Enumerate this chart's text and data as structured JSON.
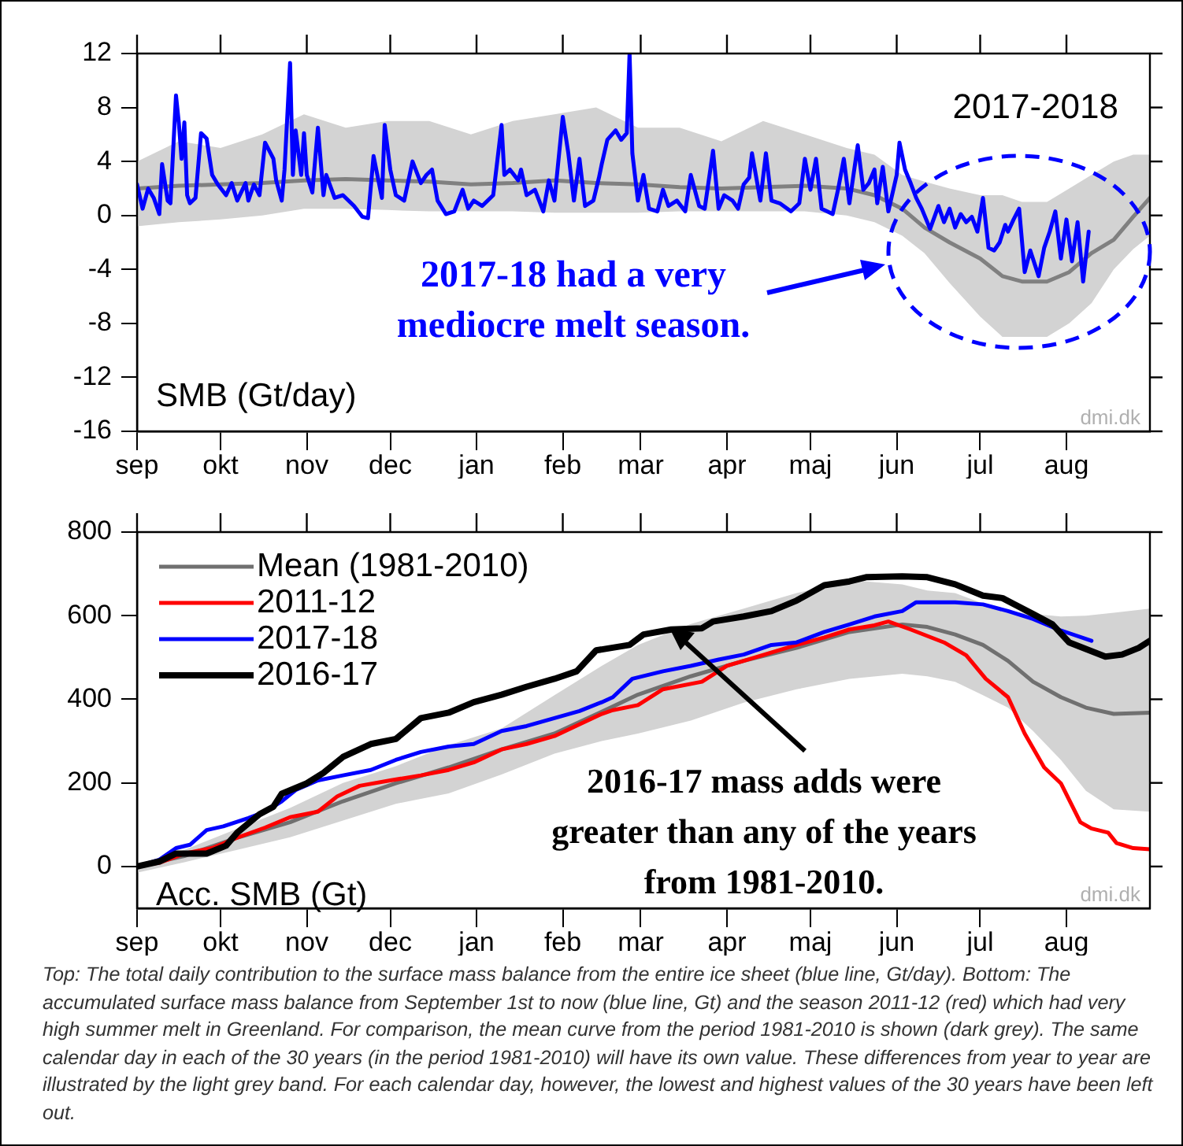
{
  "chart_data": [
    {
      "type": "line",
      "annotations": [
        "2017-2018",
        "SMB (Gt/day)",
        "2017-18 had a very mediocre melt season.",
        "dmi.dk"
      ],
      "xlim": [
        "2017-09-01",
        "2018-08-31"
      ],
      "xticks": [
        {
          "value": "2017-09-01",
          "label": "sep"
        },
        {
          "value": "2017-10-01",
          "label": "okt"
        },
        {
          "value": "2017-11-01",
          "label": "nov"
        },
        {
          "value": "2017-12-01",
          "label": "dec"
        },
        {
          "value": "2018-01-01",
          "label": "jan"
        },
        {
          "value": "2018-02-01",
          "label": "feb"
        },
        {
          "value": "2018-03-01",
          "label": "mar"
        },
        {
          "value": "2018-04-01",
          "label": "apr"
        },
        {
          "value": "2018-05-01",
          "label": "maj"
        },
        {
          "value": "2018-06-01",
          "label": "jun"
        },
        {
          "value": "2018-07-01",
          "label": "jul"
        },
        {
          "value": "2018-08-01",
          "label": "aug"
        }
      ],
      "ylim": [
        -16,
        12
      ],
      "yticks": [
        -16,
        -12,
        -8,
        -4,
        0,
        4,
        8,
        12
      ],
      "grid": false,
      "legend": false,
      "marker": "none",
      "line_style": "solid",
      "series": [
        {
          "color": "#808080",
          "x": [
            "2017-09-01",
            "2017-09-16",
            "2017-10-01",
            "2017-10-16",
            "2017-10-31",
            "2017-11-15",
            "2017-11-30",
            "2017-12-15",
            "2017-12-30",
            "2018-01-14",
            "2018-01-29",
            "2018-02-13",
            "2018-02-28",
            "2018-03-15",
            "2018-03-30",
            "2018-04-14",
            "2018-04-29",
            "2018-05-14",
            "2018-05-24",
            "2018-06-03",
            "2018-06-11",
            "2018-06-20",
            "2018-07-01",
            "2018-07-09",
            "2018-07-16",
            "2018-07-25",
            "2018-08-02",
            "2018-08-10",
            "2018-08-18",
            "2018-08-25",
            "2018-08-31"
          ],
          "values": [
            2.0,
            2.2,
            2.3,
            2.4,
            2.6,
            2.7,
            2.6,
            2.5,
            2.3,
            2.4,
            2.6,
            2.4,
            2.3,
            2.1,
            2.0,
            2.1,
            2.2,
            2.0,
            1.5,
            0.5,
            -0.9,
            -2,
            -3.2,
            -4.5,
            -4.9,
            -4.9,
            -4.2,
            -2.8,
            -1.8,
            -0.1,
            1.3
          ],
          "lower": [
            -0.8,
            -0.5,
            -0.3,
            0,
            0.5,
            0.5,
            0.4,
            0.3,
            0.3,
            0.3,
            0.2,
            0.2,
            0.2,
            0.3,
            0.3,
            0.3,
            0.3,
            0,
            -0.5,
            -1.5,
            -2.8,
            -5,
            -7.5,
            -9,
            -9,
            -9,
            -8,
            -6.5,
            -4,
            -2.5,
            -1.5
          ],
          "upper": [
            4,
            5.5,
            5,
            6,
            7.5,
            6.5,
            7,
            7,
            6,
            7,
            7.5,
            8,
            6.5,
            6.5,
            5.5,
            7,
            6,
            5,
            4.5,
            3,
            2.5,
            2,
            1.5,
            1.5,
            1,
            1,
            2,
            3,
            4,
            4.5,
            4.5
          ]
        },
        {
          "color": "#0000ff",
          "x": [
            "2017-09-01",
            "2017-09-03",
            "2017-09-05",
            "2017-09-07",
            "2017-09-09",
            "2017-09-10",
            "2017-09-12",
            "2017-09-13",
            "2017-09-15",
            "2017-09-16",
            "2017-09-17",
            "2017-09-18",
            "2017-09-19",
            "2017-09-20",
            "2017-09-22",
            "2017-09-24",
            "2017-09-26",
            "2017-09-28",
            "2017-09-30",
            "2017-10-03",
            "2017-10-05",
            "2017-10-07",
            "2017-10-10",
            "2017-10-11",
            "2017-10-13",
            "2017-10-15",
            "2017-10-17",
            "2017-10-20",
            "2017-10-21",
            "2017-10-23",
            "2017-10-24",
            "2017-10-26",
            "2017-10-27",
            "2017-10-28",
            "2017-10-30",
            "2017-10-31",
            "2017-11-01",
            "2017-11-03",
            "2017-11-05",
            "2017-11-07",
            "2017-11-08",
            "2017-11-11",
            "2017-11-14",
            "2017-11-18",
            "2017-11-21",
            "2017-11-23",
            "2017-11-25",
            "2017-11-28",
            "2017-11-29",
            "2017-12-01",
            "2017-12-03",
            "2017-12-06",
            "2017-12-09",
            "2017-12-12",
            "2017-12-14",
            "2017-12-16",
            "2017-12-18",
            "2017-12-21",
            "2017-12-24",
            "2017-12-27",
            "2017-12-29",
            "2017-12-31",
            "2018-01-03",
            "2018-01-07",
            "2018-01-10",
            "2018-01-11",
            "2018-01-13",
            "2018-01-16",
            "2018-01-17",
            "2018-01-19",
            "2018-01-22",
            "2018-01-25",
            "2018-01-27",
            "2018-01-29",
            "2018-02-01",
            "2018-02-03",
            "2018-02-05",
            "2018-02-07",
            "2018-02-09",
            "2018-02-12",
            "2018-02-14",
            "2018-02-15",
            "2018-02-17",
            "2018-02-20",
            "2018-02-22",
            "2018-02-24",
            "2018-02-25",
            "2018-02-26",
            "2018-02-28",
            "2018-03-02",
            "2018-03-04",
            "2018-03-07",
            "2018-03-09",
            "2018-03-11",
            "2018-03-14",
            "2018-03-17",
            "2018-03-19",
            "2018-03-22",
            "2018-03-24",
            "2018-03-27",
            "2018-03-29",
            "2018-03-31",
            "2018-04-03",
            "2018-04-05",
            "2018-04-07",
            "2018-04-09",
            "2018-04-10",
            "2018-04-13",
            "2018-04-15",
            "2018-04-17",
            "2018-04-20",
            "2018-04-24",
            "2018-04-27",
            "2018-04-29",
            "2018-05-01",
            "2018-05-03",
            "2018-05-05",
            "2018-05-07",
            "2018-05-09",
            "2018-05-11",
            "2018-05-13",
            "2018-05-15",
            "2018-05-18",
            "2018-05-20",
            "2018-05-22",
            "2018-05-24",
            "2018-05-25",
            "2018-05-27",
            "2018-05-29",
            "2018-06-01",
            "2018-06-02",
            "2018-06-04",
            "2018-06-06",
            "2018-06-08",
            "2018-06-10",
            "2018-06-13",
            "2018-06-16",
            "2018-06-18",
            "2018-06-20",
            "2018-06-22",
            "2018-06-24",
            "2018-06-26",
            "2018-06-28",
            "2018-06-30",
            "2018-07-02",
            "2018-07-04",
            "2018-07-06",
            "2018-07-08",
            "2018-07-10",
            "2018-07-11",
            "2018-07-13",
            "2018-07-15",
            "2018-07-17",
            "2018-07-19",
            "2018-07-22",
            "2018-07-24",
            "2018-07-26",
            "2018-07-28",
            "2018-07-30",
            "2018-08-01",
            "2018-08-03",
            "2018-08-05",
            "2018-08-07",
            "2018-08-09"
          ],
          "values": [
            2.3,
            0.5,
            2,
            1.3,
            0.1,
            3.8,
            1.1,
            0.9,
            8.9,
            6.9,
            4.2,
            6.9,
            1.5,
            0.9,
            1.3,
            6.1,
            5.7,
            3,
            2.3,
            1.5,
            2.4,
            1.1,
            2.4,
            1.1,
            2.3,
            1.5,
            5.4,
            4.2,
            2.6,
            1.1,
            3.4,
            11.3,
            3,
            6.3,
            3,
            6.1,
            3,
            1.7,
            6.5,
            1.5,
            3,
            1.3,
            1.5,
            0.7,
            -0.1,
            -0.2,
            4.4,
            1.3,
            6.7,
            3.4,
            1.5,
            1.1,
            4,
            2.4,
            3,
            3.4,
            1.1,
            0.1,
            0.3,
            1.9,
            0.5,
            1.1,
            0.7,
            1.5,
            6.7,
            3,
            3.4,
            2.6,
            3.4,
            1.5,
            1.9,
            0.3,
            2.6,
            1.1,
            7.3,
            4.6,
            1.1,
            4.2,
            0.7,
            1.1,
            2.8,
            3.8,
            5.6,
            6.3,
            5.6,
            6.1,
            12,
            4.6,
            1.1,
            3,
            0.5,
            0.3,
            1.9,
            0.7,
            1.1,
            0.3,
            3,
            0.7,
            0.5,
            4.8,
            0.5,
            1.5,
            1.1,
            0.5,
            2.3,
            2.8,
            4.6,
            1.1,
            4.6,
            1.1,
            0.9,
            0.3,
            0.9,
            4.2,
            1.9,
            4.2,
            0.5,
            0.3,
            0.1,
            2,
            4.2,
            0.9,
            5.2,
            1.9,
            2.4,
            3.4,
            0.9,
            3.6,
            0.3,
            3,
            5.4,
            3.4,
            2.4,
            1.3,
            0.5,
            -1,
            0.7,
            -0.5,
            0.5,
            -0.9,
            0.1,
            -0.5,
            -0.1,
            -1.2,
            1.3,
            -2.4,
            -2.6,
            -2,
            -0.7,
            -1.2,
            -0.3,
            0.5,
            -4.2,
            -2.6,
            -4.5,
            -2.4,
            -1.2,
            0.3,
            -3.2,
            -0.3,
            -3.4,
            -0.5,
            -4.9,
            -1.2
          ]
        }
      ]
    },
    {
      "type": "line",
      "annotations": [
        "Acc. SMB (Gt)",
        "2016-17 mass adds were greater than any of the years from 1981-2010.",
        "dmi.dk",
        "Top: The total daily contribution to the surface mass balance from the entire ice sheet (blue line, Gt/day). Bottom: The accumulated surface mass balance from September 1st to now (blue line, Gt) and the season 2011-12 (red) which had very high summer melt in Greenland. For comparison, the mean curve from the period 1981-2010 is shown (dark grey). The same calendar day in each of the 30 years (in the period 1981-2010) will have its own value. These differences from year to year are illustrated by the light grey band. For each calendar day, however, the lowest and highest values of the 30 years have been left out."
      ],
      "xlim": [
        "2017-09-01",
        "2018-08-31"
      ],
      "xticks": [
        {
          "value": "2017-09-01",
          "label": "sep"
        },
        {
          "value": "2017-10-01",
          "label": "okt"
        },
        {
          "value": "2017-11-01",
          "label": "nov"
        },
        {
          "value": "2017-12-01",
          "label": "dec"
        },
        {
          "value": "2018-01-01",
          "label": "jan"
        },
        {
          "value": "2018-02-01",
          "label": "feb"
        },
        {
          "value": "2018-03-01",
          "label": "mar"
        },
        {
          "value": "2018-04-01",
          "label": "apr"
        },
        {
          "value": "2018-05-01",
          "label": "maj"
        },
        {
          "value": "2018-06-01",
          "label": "jun"
        },
        {
          "value": "2018-07-01",
          "label": "jul"
        },
        {
          "value": "2018-08-01",
          "label": "aug"
        }
      ],
      "ylim": [
        -100,
        800
      ],
      "yticks": [
        0,
        200,
        400,
        600,
        800
      ],
      "grid": false,
      "legend": "top left",
      "marker": "none",
      "line_style": "solid",
      "series": [
        {
          "name": "Mean (1981-2010)",
          "color": "#707070",
          "x": [
            "2017-09-01",
            "2017-09-18",
            "2017-10-07",
            "2017-10-26",
            "2017-11-14",
            "2017-12-03",
            "2017-12-22",
            "2018-01-10",
            "2018-01-29",
            "2018-02-15",
            "2018-02-28",
            "2018-03-19",
            "2018-04-07",
            "2018-04-26",
            "2018-05-15",
            "2018-06-03",
            "2018-06-12",
            "2018-06-22",
            "2018-07-02",
            "2018-07-11",
            "2018-07-20",
            "2018-07-30",
            "2018-08-08",
            "2018-08-18",
            "2018-08-31"
          ],
          "values": [
            0,
            25,
            69,
            106,
            156,
            199,
            237,
            280,
            318,
            370,
            411,
            455,
            492,
            523,
            561,
            579,
            573,
            555,
            530,
            492,
            442,
            405,
            380,
            365,
            368
          ],
          "lower": [
            -15,
            10,
            40,
            70,
            110,
            150,
            175,
            220,
            270,
            300,
            318,
            349,
            392,
            424,
            449,
            461,
            455,
            442,
            410,
            380,
            324,
            255,
            181,
            137,
            131
          ],
          "upper": [
            5,
            40,
            90,
            140,
            200,
            240,
            290,
            330,
            410,
            480,
            530,
            580,
            617,
            654,
            685,
            675,
            660,
            654,
            629,
            611,
            604,
            598,
            600,
            607,
            617
          ]
        },
        {
          "name": "2011-12",
          "color": "#ff0000",
          "x": [
            "2017-09-01",
            "2017-09-09",
            "2017-09-18",
            "2017-09-28",
            "2017-10-07",
            "2017-10-17",
            "2017-10-26",
            "2017-11-05",
            "2017-11-12",
            "2017-11-20",
            "2017-12-01",
            "2017-12-12",
            "2017-12-22",
            "2017-12-31",
            "2018-01-10",
            "2018-01-19",
            "2018-01-29",
            "2018-02-07",
            "2018-02-15",
            "2018-02-19",
            "2018-02-28",
            "2018-03-09",
            "2018-03-23",
            "2018-04-01",
            "2018-04-07",
            "2018-04-26",
            "2018-05-06",
            "2018-05-15",
            "2018-05-24",
            "2018-05-29",
            "2018-06-06",
            "2018-06-18",
            "2018-06-26",
            "2018-07-03",
            "2018-07-11",
            "2018-07-17",
            "2018-07-24",
            "2018-07-30",
            "2018-08-06",
            "2018-08-10",
            "2018-08-16",
            "2018-08-19",
            "2018-08-25",
            "2018-08-31"
          ],
          "values": [
            0,
            9,
            31,
            44,
            69,
            93,
            118,
            131,
            168,
            193,
            206,
            218,
            231,
            249,
            280,
            293,
            312,
            340,
            365,
            374,
            386,
            424,
            442,
            480,
            492,
            530,
            548,
            567,
            577,
            586,
            567,
            536,
            505,
            449,
            405,
            318,
            237,
            199,
            106,
            91,
            81,
            56,
            44,
            41
          ]
        },
        {
          "name": "2017-18",
          "color": "#0000ff",
          "x": [
            "2017-09-01",
            "2017-09-09",
            "2017-09-15",
            "2017-09-20",
            "2017-09-26",
            "2017-10-02",
            "2017-10-11",
            "2017-10-17",
            "2017-10-23",
            "2017-10-28",
            "2017-11-05",
            "2017-11-14",
            "2017-11-24",
            "2017-12-03",
            "2017-12-12",
            "2017-12-22",
            "2017-12-31",
            "2018-01-10",
            "2018-01-19",
            "2018-01-29",
            "2018-02-07",
            "2018-02-15",
            "2018-02-19",
            "2018-02-26",
            "2018-03-09",
            "2018-03-19",
            "2018-03-29",
            "2018-04-07",
            "2018-04-17",
            "2018-04-26",
            "2018-05-06",
            "2018-05-15",
            "2018-05-24",
            "2018-06-03",
            "2018-06-08",
            "2018-06-22",
            "2018-07-02",
            "2018-07-11",
            "2018-07-20",
            "2018-07-29",
            "2018-08-10"
          ],
          "values": [
            0,
            16,
            44,
            52,
            87,
            96,
            116,
            131,
            156,
            183,
            206,
            218,
            231,
            255,
            274,
            287,
            293,
            324,
            336,
            355,
            372,
            393,
            405,
            449,
            467,
            480,
            495,
            507,
            530,
            536,
            561,
            579,
            598,
            611,
            632,
            632,
            627,
            611,
            592,
            567,
            540
          ]
        },
        {
          "name": "2016-17",
          "color": "#000000",
          "x": [
            "2017-09-01",
            "2017-09-09",
            "2017-09-15",
            "2017-09-26",
            "2017-10-03",
            "2017-10-07",
            "2017-10-15",
            "2017-10-20",
            "2017-10-23",
            "2017-11-01",
            "2017-11-07",
            "2017-11-14",
            "2017-11-24",
            "2017-12-03",
            "2017-12-12",
            "2017-12-22",
            "2017-12-31",
            "2018-01-10",
            "2018-01-19",
            "2018-01-29",
            "2018-02-06",
            "2018-02-13",
            "2018-02-25",
            "2018-03-02",
            "2018-03-12",
            "2018-03-23",
            "2018-03-27",
            "2018-04-07",
            "2018-04-17",
            "2018-04-26",
            "2018-05-06",
            "2018-05-15",
            "2018-05-21",
            "2018-06-03",
            "2018-06-12",
            "2018-06-22",
            "2018-07-02",
            "2018-07-09",
            "2018-07-20",
            "2018-07-27",
            "2018-08-02",
            "2018-08-15",
            "2018-08-21",
            "2018-08-27",
            "2018-08-31"
          ],
          "values": [
            0,
            12,
            31,
            31,
            50,
            81,
            125,
            143,
            174,
            199,
            224,
            262,
            293,
            305,
            355,
            368,
            393,
            411,
            430,
            449,
            467,
            517,
            530,
            555,
            567,
            570,
            586,
            598,
            611,
            636,
            673,
            682,
            692,
            694,
            692,
            675,
            648,
            642,
            604,
            579,
            536,
            502,
            507,
            523,
            540
          ]
        }
      ]
    }
  ]
}
